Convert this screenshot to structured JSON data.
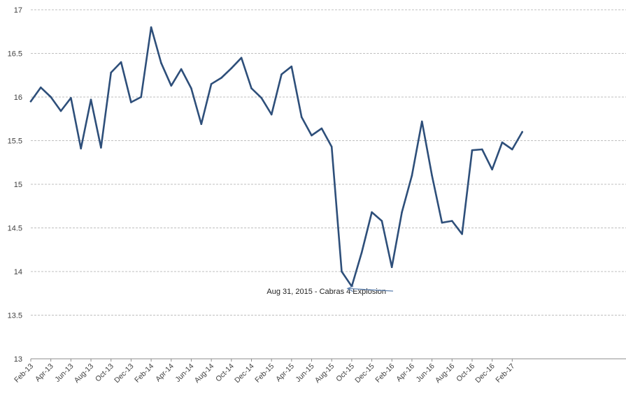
{
  "chart_data": {
    "type": "line",
    "title": "",
    "xlabel": "",
    "ylabel": "",
    "ylim": [
      13,
      17
    ],
    "yticks": [
      "13",
      "13.5",
      "14",
      "14.5",
      "15",
      "15.5",
      "16",
      "16.5",
      "17"
    ],
    "grid": true,
    "legend": "none",
    "x": [
      "Feb-13",
      "Mar-13",
      "Apr-13",
      "May-13",
      "Jun-13",
      "Jul-13",
      "Aug-13",
      "Sep-13",
      "Oct-13",
      "Nov-13",
      "Dec-13",
      "Jan-14",
      "Feb-14",
      "Mar-14",
      "Apr-14",
      "May-14",
      "Jun-14",
      "Jul-14",
      "Aug-14",
      "Sep-14",
      "Oct-14",
      "Nov-14",
      "Dec-14",
      "Jan-15",
      "Feb-15",
      "Mar-15",
      "Apr-15",
      "May-15",
      "Jun-15",
      "Jul-15",
      "Aug-15",
      "Sep-15",
      "Oct-15",
      "Nov-15",
      "Dec-15",
      "Jan-16",
      "Feb-16",
      "Mar-16",
      "Apr-16",
      "May-16",
      "Jun-16",
      "Jul-16",
      "Aug-16",
      "Sep-16",
      "Oct-16",
      "Nov-16",
      "Dec-16",
      "Jan-17",
      "Feb-17",
      "Mar-17"
    ],
    "xticks": [
      "Feb-13",
      "Apr-13",
      "Jun-13",
      "Aug-13",
      "Oct-13",
      "Dec-13",
      "Feb-14",
      "Apr-14",
      "Jun-14",
      "Aug-14",
      "Oct-14",
      "Dec-14",
      "Feb-15",
      "Apr-15",
      "Jun-15",
      "Aug-15",
      "Oct-15",
      "Dec-15",
      "Feb-16",
      "Apr-16",
      "Jun-16",
      "Aug-16",
      "Oct-16",
      "Dec-16",
      "Feb-17"
    ],
    "series": [
      {
        "color": "#2e4f7a",
        "values": [
          15.95,
          16.11,
          16.0,
          15.84,
          15.99,
          15.41,
          15.97,
          15.42,
          16.28,
          16.4,
          15.94,
          16.0,
          16.8,
          16.39,
          16.13,
          16.32,
          16.1,
          15.69,
          16.15,
          16.22,
          16.33,
          16.45,
          16.1,
          15.99,
          15.8,
          16.26,
          16.35,
          15.77,
          15.56,
          15.64,
          15.43,
          14.0,
          13.83,
          14.22,
          14.68,
          14.58,
          14.05,
          14.68,
          15.1,
          15.72,
          15.1,
          14.56,
          14.58,
          14.43,
          15.39,
          15.4,
          15.17,
          15.48,
          15.4,
          15.6
        ]
      }
    ],
    "annotations": [
      {
        "text": "Aug 31, 2015 - Cabras 4 Explosion",
        "target_x": "Oct-15",
        "target_y": 13.83
      }
    ],
    "colors": {
      "line": "#2e4f7a",
      "grid": "#bfbfbf",
      "axis": "#8c8c8c",
      "arrow": "#5b7fae"
    }
  }
}
